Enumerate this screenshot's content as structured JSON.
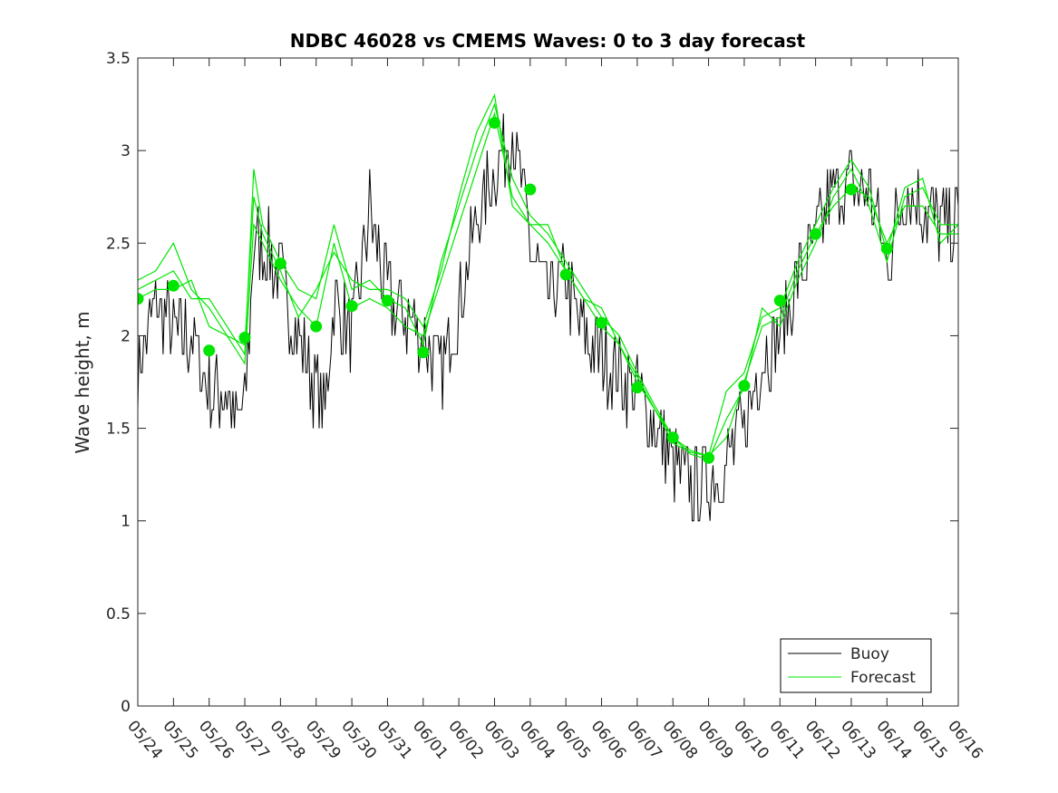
{
  "chart_data": {
    "type": "line",
    "title": "NDBC 46028 vs CMEMS Waves: 0 to 3 day forecast",
    "xlabel": "",
    "ylabel": "Wave height, m",
    "ylim": [
      0,
      3.5
    ],
    "yticks": [
      "0",
      "0.5",
      "1",
      "1.5",
      "2",
      "2.5",
      "3",
      "3.5"
    ],
    "xlim": [
      "05/24",
      "06/16"
    ],
    "xticks": [
      "05/24",
      "05/25",
      "05/26",
      "05/27",
      "05/28",
      "05/29",
      "05/30",
      "05/31",
      "06/01",
      "06/02",
      "06/03",
      "06/04",
      "06/05",
      "06/06",
      "06/07",
      "06/08",
      "06/09",
      "06/10",
      "06/11",
      "06/12",
      "06/13",
      "06/14",
      "06/15",
      "06/16"
    ],
    "grid": false,
    "legend_position": "bottom-right",
    "colors": {
      "buoy": "#000000",
      "forecast": "#00e600"
    },
    "buoy": {
      "name": "Buoy",
      "x": [
        "05/24 00:00",
        "05/24 12:00",
        "05/25 00:00",
        "05/25 12:00",
        "05/26 00:00",
        "05/26 12:00",
        "05/26 18:00",
        "05/27 00:00",
        "05/27 06:00",
        "05/27 12:00",
        "05/28 00:00",
        "05/28 12:00",
        "05/29 00:00",
        "05/29 06:00",
        "05/29 12:00",
        "05/30 00:00",
        "05/30 06:00",
        "05/30 12:00",
        "05/31 00:00",
        "05/31 12:00",
        "06/01 00:00",
        "06/01 12:00",
        "06/02 00:00",
        "06/02 12:00",
        "06/03 00:00",
        "06/03 12:00",
        "06/04 00:00",
        "06/04 12:00",
        "06/05 00:00",
        "06/05 12:00",
        "06/06 00:00",
        "06/06 12:00",
        "06/07 00:00",
        "06/07 12:00",
        "06/08 00:00",
        "06/08 12:00",
        "06/09 00:00",
        "06/09 12:00",
        "06/10 00:00",
        "06/10 12:00",
        "06/11 00:00",
        "06/11 12:00",
        "06/12 00:00",
        "06/12 12:00",
        "06/13 00:00",
        "06/13 12:00",
        "06/14 00:00",
        "06/14 12:00",
        "06/15 00:00",
        "06/15 12:00",
        "06/16 00:00"
      ],
      "values": [
        1.8,
        2.2,
        2.0,
        2.0,
        1.7,
        1.7,
        1.5,
        1.6,
        2.5,
        2.5,
        2.3,
        2.0,
        1.7,
        1.6,
        2.2,
        2.0,
        2.3,
        2.7,
        2.2,
        2.1,
        2.0,
        1.8,
        2.2,
        2.6,
        2.9,
        3.1,
        2.5,
        2.2,
        2.3,
        2.0,
        1.9,
        1.8,
        1.7,
        1.5,
        1.3,
        1.2,
        1.2,
        1.3,
        1.5,
        1.9,
        2.0,
        2.3,
        2.5,
        2.8,
        2.8,
        2.8,
        2.4,
        2.8,
        2.7,
        2.6,
        2.6
      ]
    },
    "forecast": {
      "name": "Forecast",
      "x": [
        "05/24 00:00",
        "05/24 12:00",
        "05/25 00:00",
        "05/25 12:00",
        "05/26 00:00",
        "05/26 12:00",
        "05/27 00:00",
        "05/27 06:00",
        "05/27 12:00",
        "05/28 00:00",
        "05/28 12:00",
        "05/29 00:00",
        "05/29 12:00",
        "05/30 00:00",
        "05/30 12:00",
        "05/31 00:00",
        "05/31 12:00",
        "06/01 00:00",
        "06/01 12:00",
        "06/02 00:00",
        "06/02 12:00",
        "06/03 00:00",
        "06/03 12:00",
        "06/04 00:00",
        "06/04 12:00",
        "06/05 00:00",
        "06/05 12:00",
        "06/06 00:00",
        "06/06 12:00",
        "06/07 00:00",
        "06/07 12:00",
        "06/08 00:00",
        "06/08 12:00",
        "06/09 00:00",
        "06/09 12:00",
        "06/10 00:00",
        "06/10 12:00",
        "06/11 00:00",
        "06/11 12:00",
        "06/12 00:00",
        "06/12 12:00",
        "06/13 00:00",
        "06/13 12:00",
        "06/14 00:00",
        "06/14 12:00",
        "06/15 00:00",
        "06/15 12:00",
        "06/16 00:00"
      ],
      "runs": [
        [
          2.2,
          2.25,
          2.25,
          2.3,
          2.05,
          2.0,
          1.85,
          2.6,
          2.5,
          2.3,
          2.15,
          2.05,
          2.5,
          2.15,
          2.2,
          2.15,
          2.05,
          2.0,
          2.3,
          2.6,
          2.9,
          3.2,
          2.75,
          2.6,
          2.5,
          2.35,
          2.2,
          2.05,
          1.95,
          1.75,
          1.6,
          1.45,
          1.38,
          1.35,
          1.45,
          1.75,
          2.05,
          2.1,
          2.35,
          2.55,
          2.7,
          2.8,
          2.75,
          2.5,
          2.7,
          2.7,
          2.55,
          2.55
        ],
        [
          2.25,
          2.3,
          2.35,
          2.2,
          2.2,
          2.05,
          1.9,
          2.9,
          2.6,
          2.4,
          2.25,
          2.2,
          2.6,
          2.25,
          2.3,
          2.2,
          2.15,
          1.95,
          2.4,
          2.7,
          3.0,
          3.25,
          2.85,
          2.65,
          2.55,
          2.4,
          2.25,
          2.1,
          2.0,
          1.8,
          1.62,
          1.45,
          1.36,
          1.33,
          1.55,
          1.72,
          2.15,
          2.05,
          2.3,
          2.5,
          2.75,
          2.9,
          2.7,
          2.4,
          2.75,
          2.8,
          2.6,
          2.6
        ],
        [
          2.3,
          2.35,
          2.5,
          2.25,
          2.15,
          2.0,
          1.95,
          2.75,
          2.55,
          2.35,
          2.1,
          2.25,
          2.45,
          2.3,
          2.25,
          2.25,
          2.2,
          2.05,
          2.35,
          2.75,
          3.1,
          3.3,
          2.7,
          2.6,
          2.6,
          2.35,
          2.2,
          2.15,
          1.95,
          1.78,
          1.6,
          1.42,
          1.37,
          1.35,
          1.7,
          1.8,
          2.1,
          2.15,
          2.4,
          2.6,
          2.8,
          2.95,
          2.8,
          2.45,
          2.8,
          2.85,
          2.5,
          2.6
        ]
      ],
      "dots_x": [
        "05/24 00:00",
        "05/25 00:00",
        "05/26 00:00",
        "05/27 00:00",
        "05/28 00:00",
        "05/29 00:00",
        "05/30 00:00",
        "05/31 00:00",
        "06/01 00:00",
        "06/03 00:00",
        "06/04 00:00",
        "06/05 00:00",
        "06/06 00:00",
        "06/07 00:00",
        "06/08 00:00",
        "06/09 00:00",
        "06/10 00:00",
        "06/11 00:00",
        "06/12 00:00",
        "06/13 00:00",
        "06/14 00:00"
      ],
      "dots_y": [
        2.2,
        2.27,
        1.92,
        1.99,
        2.39,
        2.05,
        2.16,
        2.19,
        1.91,
        3.15,
        2.79,
        2.33,
        2.07,
        1.72,
        1.45,
        1.34,
        1.73,
        2.19,
        2.55,
        2.79,
        2.47
      ]
    },
    "legend": [
      "Buoy",
      "Forecast"
    ]
  }
}
